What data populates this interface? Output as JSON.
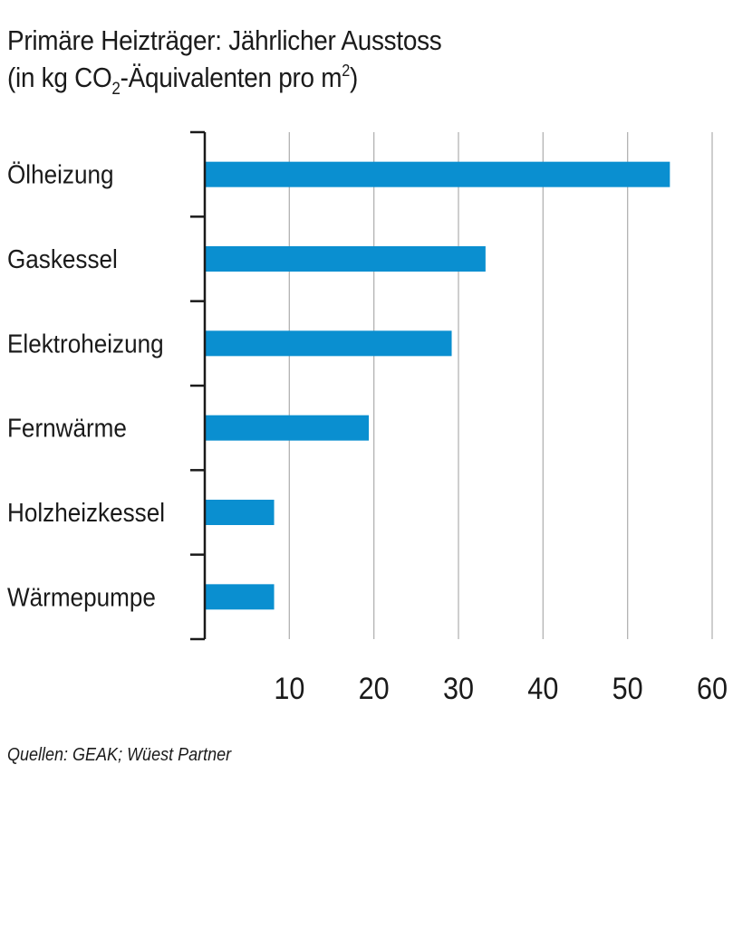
{
  "title": {
    "line1": "Primäre  Heizträger: Jährlicher Ausstoss",
    "line2_a": "(in kg CO",
    "line2_sub": "2",
    "line2_b": "-Äquivalenten pro m",
    "line2_sup": "2",
    "line2_c": ")"
  },
  "source": "Quellen: GEAK; Wüest Partner",
  "colors": {
    "bar": "#0a8fd0",
    "grid": "#b3b3b3",
    "axis": "#1a1a1a"
  },
  "chart_data": {
    "type": "bar",
    "orientation": "horizontal",
    "categories": [
      "Ölheizung",
      "Gaskessel",
      "Elektroheizung",
      "Fernwärme",
      "Holzheizkessel",
      "Wärmepumpe"
    ],
    "values": [
      55,
      33.2,
      29.2,
      19.4,
      8.2,
      8.2
    ],
    "xlim": [
      0,
      60
    ],
    "xticks": [
      10,
      20,
      30,
      40,
      50,
      60
    ],
    "grid": "vertical"
  }
}
